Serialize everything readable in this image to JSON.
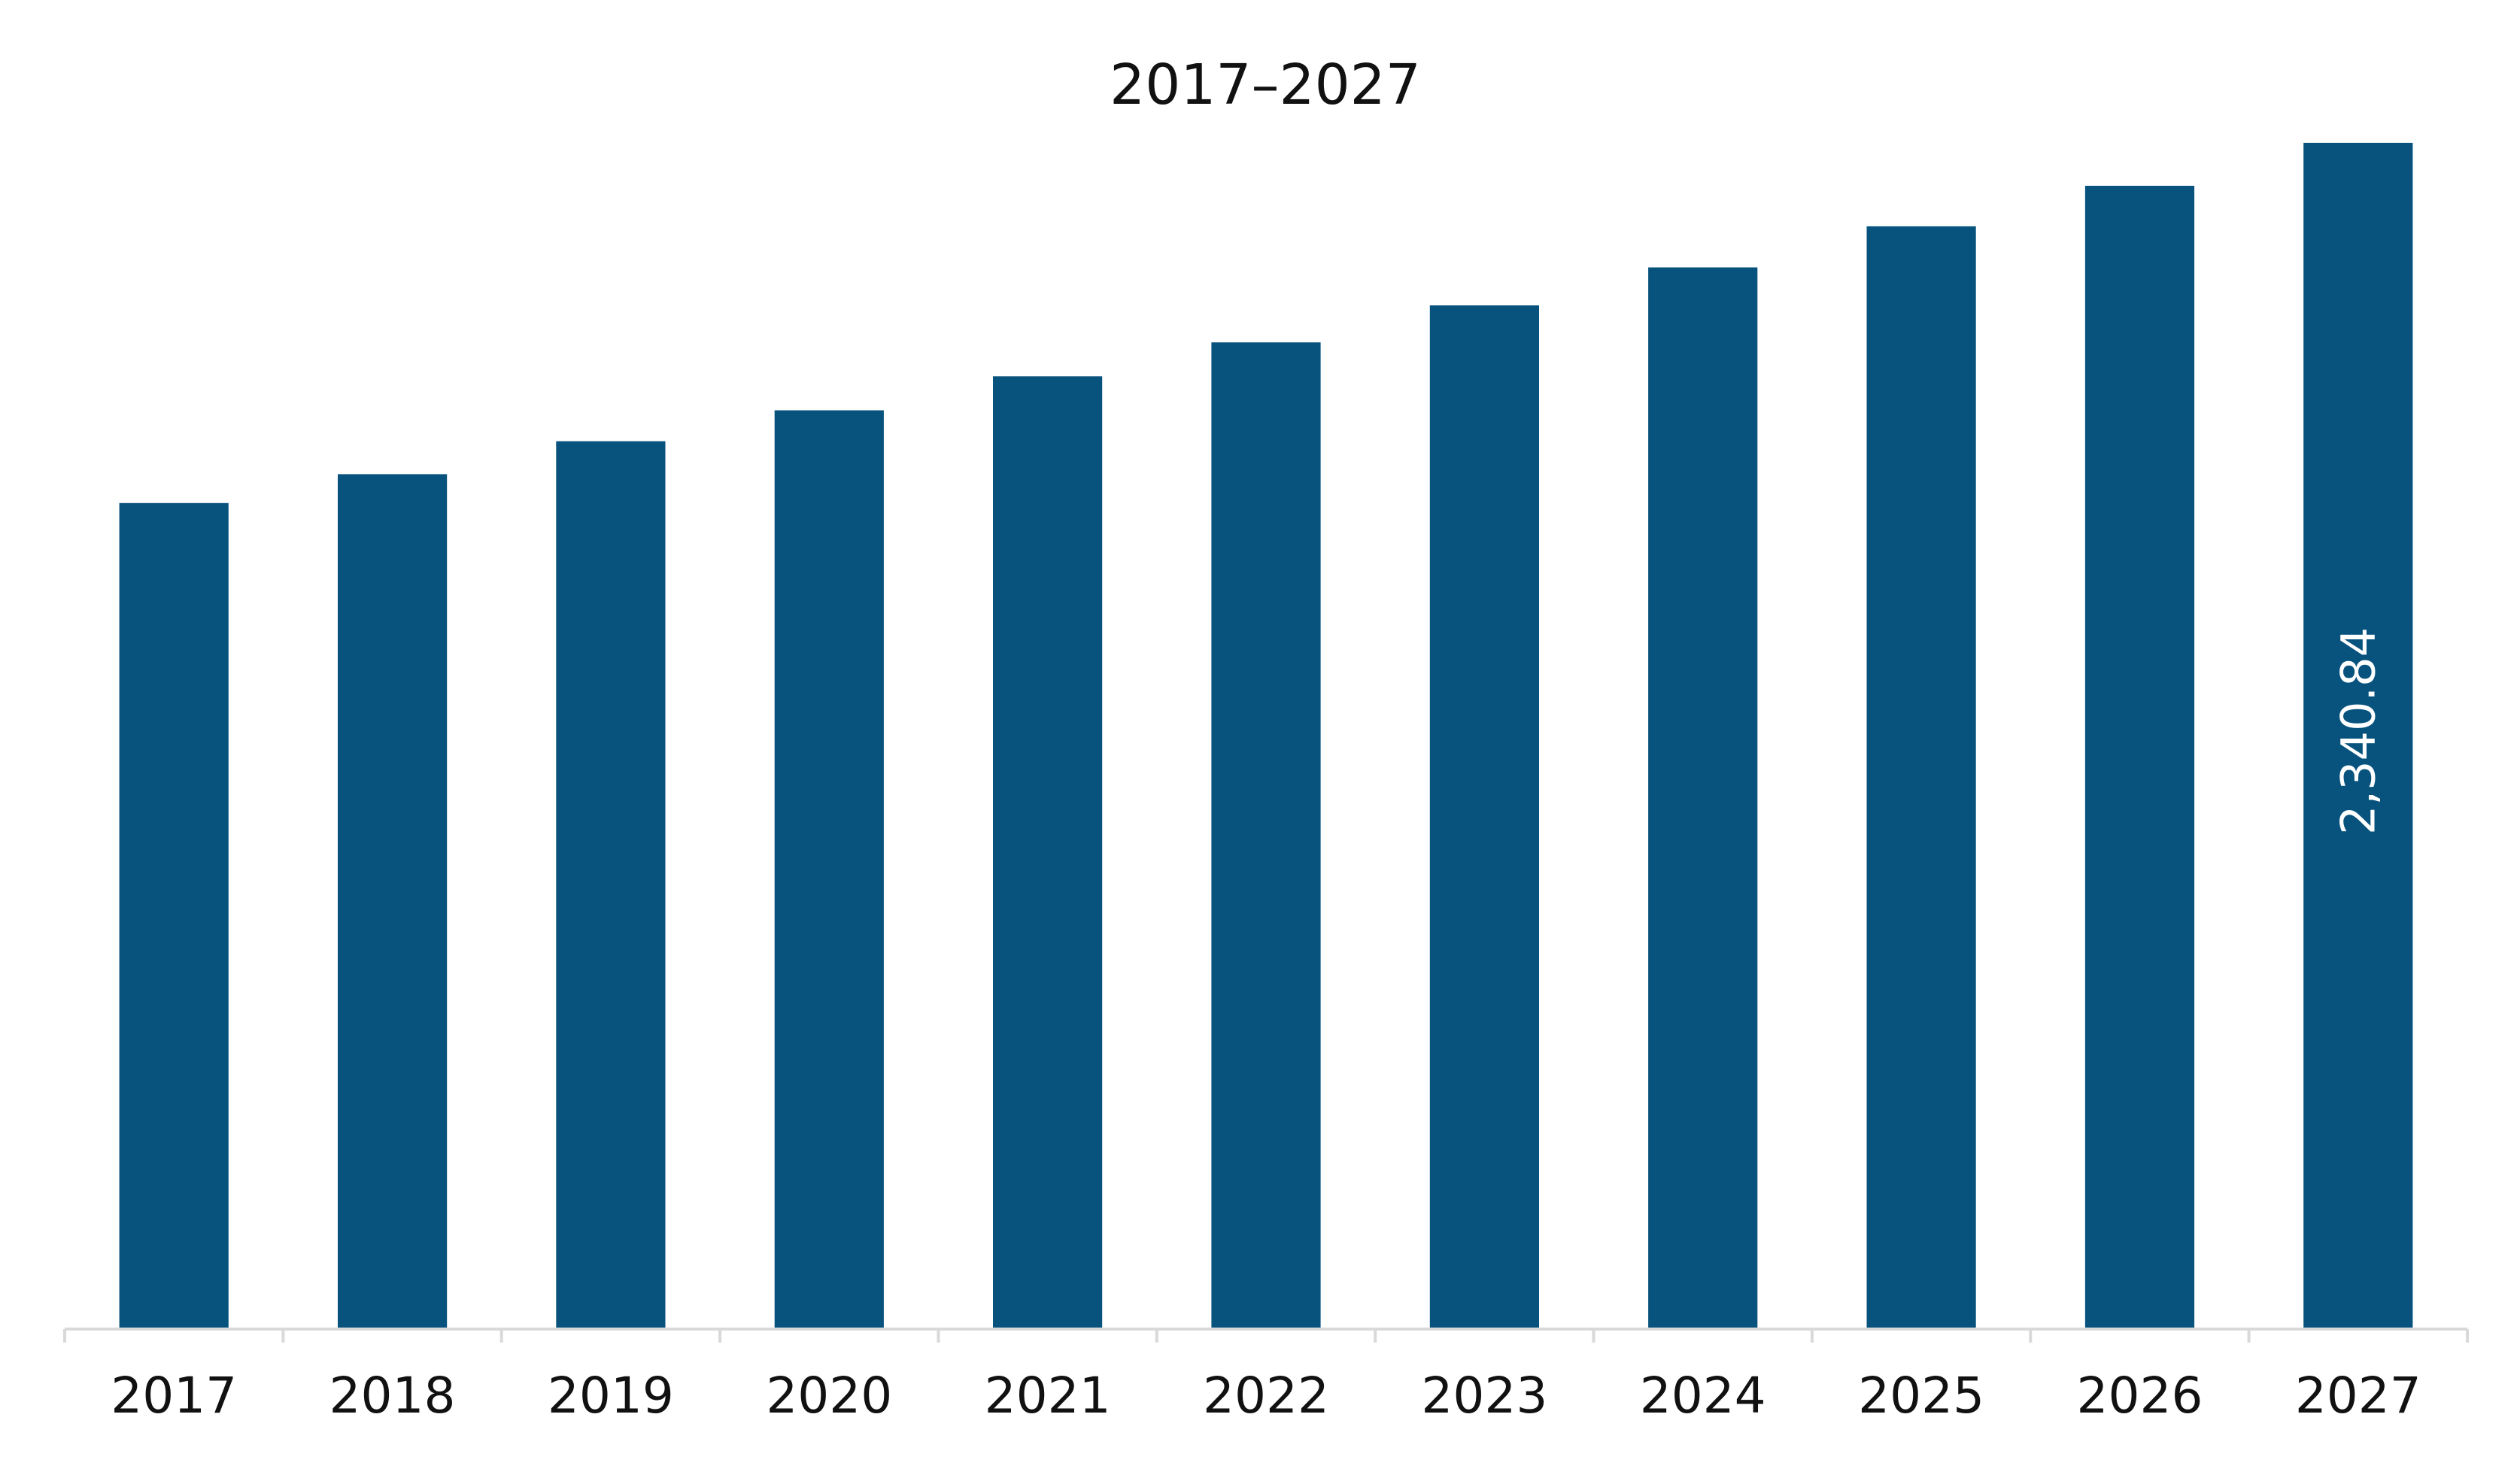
{
  "chart_data": {
    "type": "bar",
    "title": "2017–2027",
    "xlabel": "",
    "ylabel": "",
    "categories": [
      "2017",
      "2018",
      "2019",
      "2020",
      "2021",
      "2022",
      "2023",
      "2024",
      "2025",
      "2026",
      "2027"
    ],
    "series": [
      {
        "values": [
          1630,
          1687,
          1752,
          1813,
          1880,
          1947,
          2020,
          2095,
          2176,
          2256,
          2340.84
        ],
        "color": "#08537E"
      }
    ],
    "data_labels": [
      {
        "category": "2027",
        "text": "2,340.84",
        "orientation": "vertical",
        "color": "#FFFFFF"
      }
    ],
    "ylim": [
      0,
      2400
    ],
    "y_axis_visible": false,
    "grid": false,
    "legend": "none",
    "axis_color": "#D9D9D9"
  }
}
